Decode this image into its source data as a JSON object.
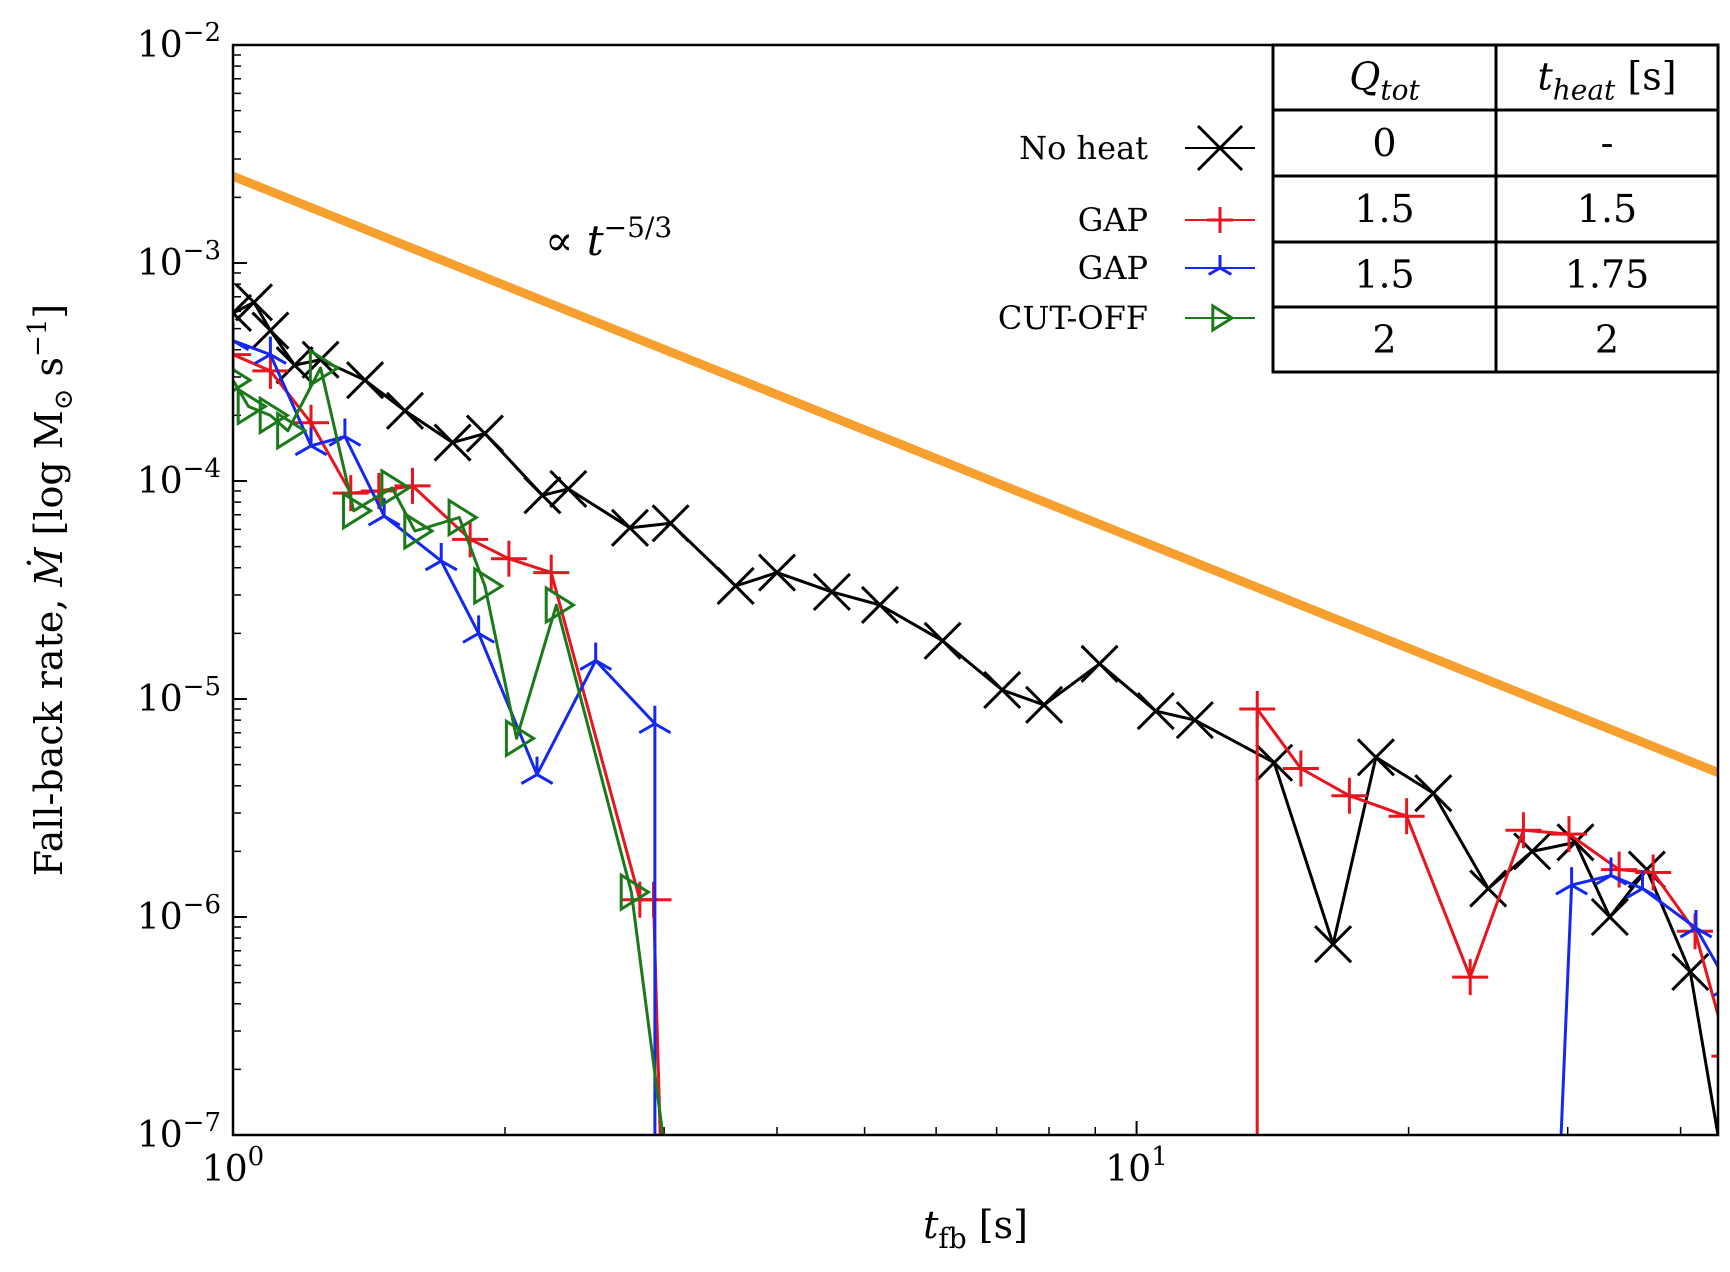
{
  "chart_data": {
    "type": "line",
    "xscale": "log",
    "yscale": "log",
    "xlim": [
      1.0,
      44.0
    ],
    "ylim": [
      1e-07,
      0.01
    ],
    "xlabel": {
      "base": "t",
      "sub": "fb",
      "unit": "[s]"
    },
    "ylabel": {
      "text": "Fall-back rate, ",
      "symbol": "Ṁ",
      "unit_open": "[log M",
      "unit_sub": "⊙",
      "unit_mid": " s",
      "unit_sup": "−1",
      "unit_close": "]"
    },
    "x_ticks": [
      {
        "value": 1,
        "base": "10",
        "exp": "0"
      },
      {
        "value": 10,
        "base": "10",
        "exp": "1"
      }
    ],
    "y_ticks": [
      {
        "value": 0.01,
        "base": "10",
        "exp": "−2"
      },
      {
        "value": 0.001,
        "base": "10",
        "exp": "−3"
      },
      {
        "value": 0.0001,
        "base": "10",
        "exp": "−4"
      },
      {
        "value": 1e-05,
        "base": "10",
        "exp": "−5"
      },
      {
        "value": 1e-06,
        "base": "10",
        "exp": "−6"
      },
      {
        "value": 1e-07,
        "base": "10",
        "exp": "−7"
      }
    ],
    "reference_line": {
      "name": "t^-5/3 scaling",
      "label_prefix": "∝ t",
      "label_exp": "−5/3",
      "color": "#F7A030",
      "points": [
        [
          1.0,
          0.0025
        ],
        [
          44.0,
          4.6e-06
        ]
      ]
    },
    "series": [
      {
        "name": "No heat",
        "color": "#000000",
        "marker": "x",
        "points": [
          [
            1.0,
            0.00059
          ],
          [
            1.055,
            0.00066
          ],
          [
            1.1,
            0.00049
          ],
          [
            1.17,
            0.00034
          ],
          [
            1.25,
            0.00036
          ],
          [
            1.4,
            0.00029
          ],
          [
            1.55,
            0.00021
          ],
          [
            1.75,
            0.00015
          ],
          [
            1.9,
            0.000165
          ],
          [
            2.2,
            8.6e-05
          ],
          [
            2.35,
            9.2e-05
          ],
          [
            2.75,
            6.1e-05
          ],
          [
            3.05,
            6.4e-05
          ],
          [
            3.6,
            3.3e-05
          ],
          [
            4.0,
            3.8e-05
          ],
          [
            4.6,
            3.1e-05
          ],
          [
            5.2,
            2.7e-05
          ],
          [
            6.1,
            1.85e-05
          ],
          [
            7.1,
            1.1e-05
          ],
          [
            7.9,
            9.4e-06
          ],
          [
            9.1,
            1.45e-05
          ],
          [
            10.5,
            8.8e-06
          ],
          [
            11.6,
            8e-06
          ],
          [
            14.2,
            5.1e-06
          ],
          [
            16.5,
            7.5e-07
          ],
          [
            18.4,
            5.4e-06
          ],
          [
            21.3,
            3.7e-06
          ],
          [
            24.5,
            1.35e-06
          ],
          [
            27.4,
            2e-06
          ],
          [
            30.6,
            2.2e-06
          ],
          [
            33.4,
            1e-06
          ],
          [
            36.7,
            1.65e-06
          ],
          [
            41.0,
            5.6e-07
          ],
          [
            44.0,
            1e-07
          ]
        ]
      },
      {
        "name": "GAP",
        "color": "#E8141E",
        "marker": "+",
        "points": [
          [
            1.0,
            0.00038
          ],
          [
            1.1,
            0.00032
          ],
          [
            1.22,
            0.000185
          ],
          [
            1.35,
            8.8e-05
          ],
          [
            1.45,
            9e-05
          ],
          [
            1.58,
            9.5e-05
          ],
          [
            1.83,
            5.4e-05
          ],
          [
            2.02,
            4.4e-05
          ],
          [
            2.25,
            3.8e-05
          ],
          [
            2.82,
            1.2e-06
          ],
          [
            2.92,
            1.2e-06
          ],
          [
            2.97,
            1e-07
          ]
        ],
        "segment2": [
          [
            13.6,
            1e-07
          ],
          [
            13.6,
            9e-06
          ],
          [
            15.2,
            4.8e-06
          ],
          [
            17.2,
            3.6e-06
          ],
          [
            19.9,
            2.9e-06
          ],
          [
            23.4,
            5.3e-07
          ],
          [
            26.8,
            2.5e-06
          ],
          [
            30.1,
            2.4e-06
          ],
          [
            34.2,
            1.65e-06
          ],
          [
            37.3,
            1.6e-06
          ],
          [
            41.5,
            8.6e-07
          ],
          [
            45.3,
            2.3e-07
          ]
        ]
      },
      {
        "name": "GAP",
        "color": "#1428F0",
        "marker": "tri",
        "points": [
          [
            1.0,
            0.00044
          ],
          [
            1.1,
            0.00038
          ],
          [
            1.22,
            0.000145
          ],
          [
            1.33,
            0.00016
          ],
          [
            1.47,
            6.9e-05
          ],
          [
            1.7,
            4.3e-05
          ],
          [
            1.87,
            2e-05
          ],
          [
            2.17,
            4.5e-06
          ],
          [
            2.52,
            1.5e-05
          ],
          [
            2.93,
            7.7e-06
          ],
          [
            2.93,
            1e-07
          ]
        ],
        "segment2": [
          [
            29.5,
            1e-07
          ],
          [
            30.3,
            1.4e-06
          ],
          [
            33.5,
            1.55e-06
          ],
          [
            36.3,
            1.35e-06
          ],
          [
            41.6,
            8.9e-07
          ],
          [
            45.3,
            4.8e-07
          ]
        ]
      },
      {
        "name": "CUT-OFF",
        "color": "#1A7A1A",
        "marker": "triangle-right",
        "points": [
          [
            1.0,
            0.00029
          ],
          [
            1.04,
            0.00022
          ],
          [
            1.1,
            0.0002
          ],
          [
            1.15,
            0.00017
          ],
          [
            1.25,
            0.00033
          ],
          [
            1.36,
            7.3e-05
          ],
          [
            1.5,
            9.3e-05
          ],
          [
            1.59,
            5.9e-05
          ],
          [
            1.78,
            6.8e-05
          ],
          [
            1.9,
            3.3e-05
          ],
          [
            2.06,
            6.6e-06
          ],
          [
            2.28,
            2.7e-05
          ],
          [
            2.76,
            1.3e-06
          ],
          [
            2.99,
            1e-07
          ]
        ]
      }
    ],
    "legend": {
      "placement": "top-right",
      "entries": [
        {
          "label": "No heat",
          "color": "#000000",
          "marker": "x"
        },
        {
          "label": "GAP",
          "color": "#E8141E",
          "marker": "+"
        },
        {
          "label": "GAP",
          "color": "#1428F0",
          "marker": "tri"
        },
        {
          "label": "CUT-OFF",
          "color": "#1A7A1A",
          "marker": "triangle-right"
        }
      ]
    },
    "table": {
      "headers": [
        {
          "base": "Q",
          "sub": "tot",
          "unit": ""
        },
        {
          "base": "t",
          "sub": "heat",
          "unit": " [s]"
        }
      ],
      "rows": [
        [
          "0",
          "-"
        ],
        [
          "1.5",
          "1.5"
        ],
        [
          "1.5",
          "1.75"
        ],
        [
          "2",
          "2"
        ]
      ]
    }
  }
}
